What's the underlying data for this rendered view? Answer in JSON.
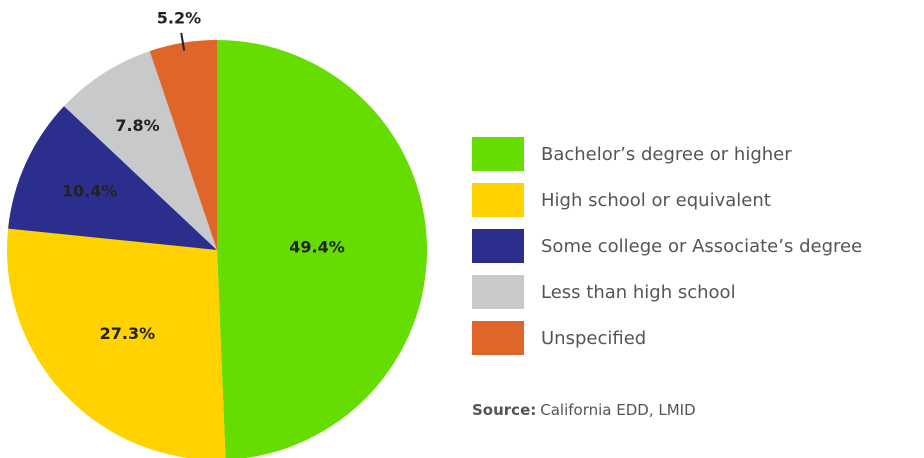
{
  "chart_data": {
    "type": "pie",
    "categories": [
      "Bachelor’s degree or higher",
      "High school or equivalent",
      "Some college or Associate’s degree",
      "Less than high school",
      "Unspecified"
    ],
    "values": [
      49.4,
      27.3,
      10.4,
      7.8,
      5.2
    ],
    "value_labels": [
      "49.4%",
      "27.3%",
      "10.4%",
      "7.8%",
      "5.2%"
    ],
    "colors": [
      "#66dd00",
      "#ffd200",
      "#2b2e8c",
      "#c8c9cb",
      "#e0652a"
    ],
    "source_label": "Source:",
    "source_text": "California EDD, LMID"
  }
}
